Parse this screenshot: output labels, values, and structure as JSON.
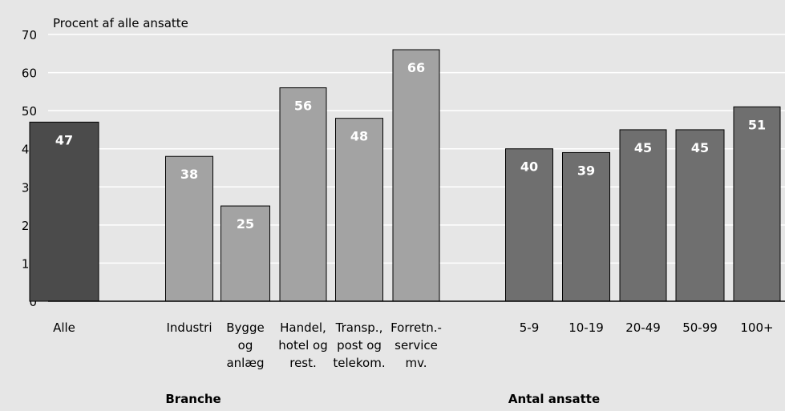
{
  "chart_data": {
    "type": "bar",
    "y_axis_title": "Procent af alle ansatte",
    "categories": [
      "Alle",
      "Industri",
      "Bygge\nog\nanlæg",
      "Handel,\nhotel og\nrest.",
      "Transp.,\npost og\ntelekom.",
      "Forretn.-\nservice\nmv.",
      "5-9",
      "10-19",
      "20-49",
      "50-99",
      "100+"
    ],
    "values": [
      47,
      38,
      25,
      56,
      48,
      66,
      40,
      39,
      45,
      45,
      51
    ],
    "colors": [
      "#4b4b4b",
      "#a3a3a3",
      "#a3a3a3",
      "#a3a3a3",
      "#a3a3a3",
      "#a3a3a3",
      "#6f6f6f",
      "#6f6f6f",
      "#6f6f6f",
      "#6f6f6f",
      "#6f6f6f"
    ],
    "groups": [
      "Branche",
      "Antal ansatte"
    ],
    "ylim": [
      0,
      70
    ],
    "yticks": [
      0,
      10,
      20,
      30,
      40,
      50,
      60,
      70
    ],
    "grid": true
  }
}
